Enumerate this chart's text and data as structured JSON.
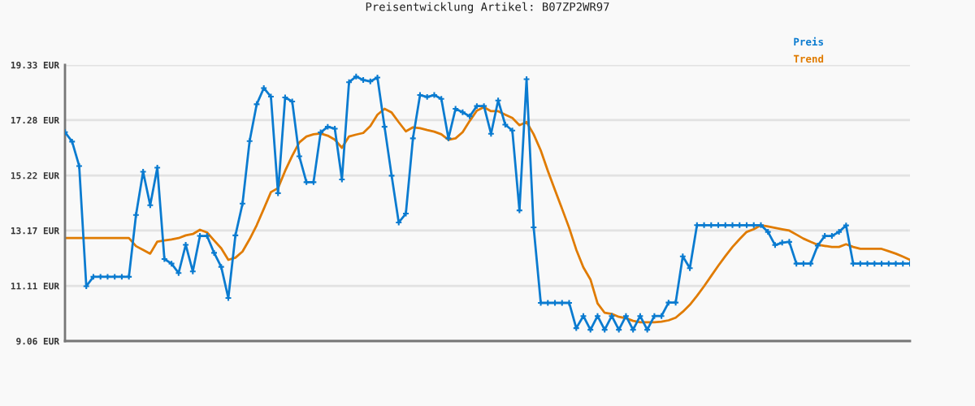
{
  "chart_data": {
    "type": "line",
    "title": "Preisentwicklung Artikel: B07ZP2WR97",
    "categories": [
      null,
      null,
      null,
      null,
      null,
      null,
      null,
      null,
      null,
      null,
      null,
      null,
      null,
      null,
      null,
      null,
      null,
      null,
      null,
      null,
      null,
      null,
      null,
      null,
      null,
      null,
      null,
      null,
      null,
      null,
      null,
      null,
      null,
      null,
      null,
      null,
      null,
      null,
      null,
      null,
      null,
      null,
      null,
      null,
      null,
      null,
      null,
      null,
      null,
      null,
      null,
      null,
      null,
      null,
      null,
      null,
      null,
      null,
      null,
      null,
      null,
      null,
      null,
      null,
      null,
      null,
      null,
      null,
      null,
      null,
      null,
      null,
      null,
      null,
      null,
      null,
      null,
      null,
      null,
      null,
      null,
      null,
      null,
      null,
      null,
      null,
      null,
      null,
      null,
      null,
      null,
      null,
      null,
      null,
      null,
      null,
      null,
      null,
      null,
      null,
      null,
      null,
      null,
      null,
      null,
      null,
      null,
      null,
      null,
      null,
      null,
      null,
      null,
      null,
      null,
      null,
      null,
      null,
      null,
      null
    ],
    "series": [
      {
        "name": "Preis",
        "color": "#0a7bd0",
        "marker": "cross",
        "values": [
          16.83,
          16.48,
          15.57,
          11.1,
          11.45,
          11.45,
          11.45,
          11.45,
          11.45,
          11.45,
          13.75,
          15.36,
          14.11,
          15.51,
          12.11,
          11.94,
          11.59,
          12.64,
          11.65,
          12.97,
          12.97,
          12.34,
          11.82,
          10.66,
          12.99,
          14.17,
          16.5,
          17.87,
          18.47,
          18.15,
          14.56,
          18.12,
          17.97,
          15.93,
          14.97,
          14.97,
          16.82,
          17.03,
          16.96,
          15.07,
          18.69,
          18.9,
          18.77,
          18.72,
          18.86,
          17.03,
          15.21,
          13.47,
          13.8,
          16.6,
          18.21,
          18.14,
          18.21,
          18.07,
          16.6,
          17.7,
          17.57,
          17.42,
          17.8,
          17.8,
          16.77,
          18.01,
          17.11,
          16.89,
          13.92,
          18.8,
          13.29,
          10.48,
          10.48,
          10.48,
          10.48,
          10.48,
          9.54,
          9.99,
          9.48,
          9.99,
          9.48,
          9.99,
          9.48,
          9.99,
          9.48,
          9.99,
          9.48,
          9.99,
          9.99,
          10.49,
          10.49,
          12.21,
          11.77,
          13.37,
          13.37,
          13.37,
          13.37,
          13.37,
          13.37,
          13.37,
          13.37,
          13.37,
          13.37,
          13.12,
          12.63,
          12.72,
          12.75,
          11.94,
          11.94,
          11.94,
          12.61,
          12.97,
          12.97,
          13.12,
          13.36,
          11.94,
          11.94,
          11.94,
          11.94,
          11.94,
          11.94,
          11.94,
          11.94,
          11.94
        ]
      },
      {
        "name": "Trend",
        "color": "#e07b00",
        "marker": "none",
        "values": [
          12.89,
          12.89,
          12.89,
          12.89,
          12.89,
          12.89,
          12.89,
          12.89,
          12.89,
          12.89,
          12.59,
          12.45,
          12.31,
          12.76,
          12.8,
          12.84,
          12.89,
          12.99,
          13.04,
          13.2,
          13.1,
          12.8,
          12.51,
          12.08,
          12.16,
          12.39,
          12.85,
          13.37,
          13.98,
          14.6,
          14.75,
          15.39,
          15.95,
          16.45,
          16.67,
          16.75,
          16.78,
          16.7,
          16.55,
          16.25,
          16.67,
          16.74,
          16.8,
          17.06,
          17.48,
          17.7,
          17.56,
          17.2,
          16.86,
          17.01,
          16.98,
          16.91,
          16.85,
          16.75,
          16.55,
          16.6,
          16.83,
          17.25,
          17.63,
          17.76,
          17.61,
          17.61,
          17.48,
          17.36,
          17.09,
          17.21,
          16.75,
          16.15,
          15.39,
          14.68,
          13.98,
          13.27,
          12.46,
          11.8,
          11.35,
          10.46,
          10.11,
          10.07,
          9.96,
          9.91,
          9.81,
          9.76,
          9.76,
          9.76,
          9.78,
          9.83,
          9.93,
          10.15,
          10.41,
          10.74,
          11.1,
          11.48,
          11.86,
          12.22,
          12.56,
          12.85,
          13.12,
          13.22,
          13.37,
          13.32,
          13.27,
          13.22,
          13.17,
          13.02,
          12.87,
          12.75,
          12.64,
          12.6,
          12.56,
          12.56,
          12.66,
          12.56,
          12.49,
          12.49,
          12.49,
          12.49,
          12.4,
          12.31,
          12.2,
          12.08
        ]
      }
    ],
    "ylim": [
      9.06,
      19.33
    ],
    "yticks": [
      {
        "value": 9.06,
        "label": "9.06 EUR"
      },
      {
        "value": 11.11,
        "label": "11.11 EUR"
      },
      {
        "value": 13.17,
        "label": "13.17 EUR"
      },
      {
        "value": 15.22,
        "label": "15.22 EUR"
      },
      {
        "value": 17.28,
        "label": "17.28 EUR"
      },
      {
        "value": 19.33,
        "label": "19.33 EUR"
      }
    ],
    "grid": "y",
    "legend": "top right",
    "line_style": "solid"
  }
}
